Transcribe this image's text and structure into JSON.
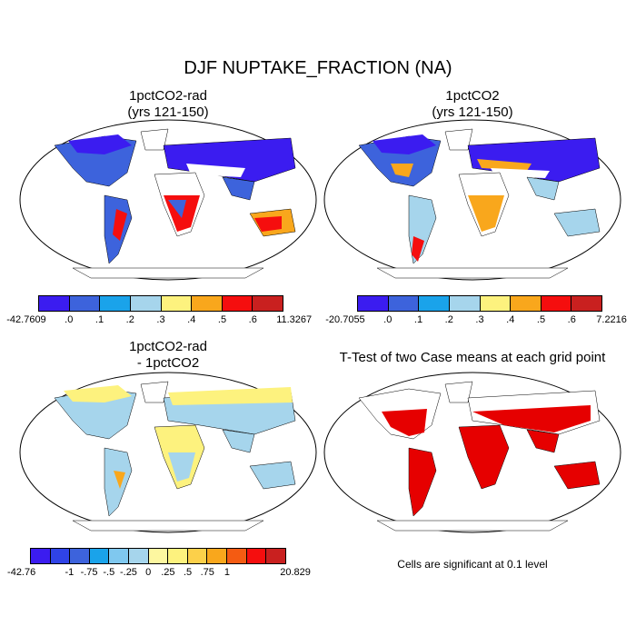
{
  "title": "DJF NUPTAKE_FRACTION (NA)",
  "panels": [
    {
      "title_line1": "1pctCO2-rad",
      "title_line2": "(yrs 121-150)"
    },
    {
      "title_line1": "1pctCO2",
      "title_line2": "(yrs 121-150)"
    },
    {
      "title_line1": "1pctCO2-rad",
      "title_line2": "- 1pctCO2"
    },
    {
      "title_line1": "T-Test of two Case means at each grid point",
      "title_line2": ""
    }
  ],
  "colorbars": [
    {
      "colors": [
        "#3b1cf0",
        "#3d63dc",
        "#1aa3ea",
        "#a6d5ec",
        "#fdf27e",
        "#f9a71c",
        "#f50e0e",
        "#c9201f"
      ],
      "labels": [
        "-42.7609",
        ".0",
        ".1",
        ".2",
        ".3",
        ".4",
        ".5",
        ".6",
        "11.3267"
      ]
    },
    {
      "colors": [
        "#3b1cf0",
        "#3d63dc",
        "#1aa3ea",
        "#a6d5ec",
        "#fdf27e",
        "#f9a71c",
        "#f50e0e",
        "#c9201f"
      ],
      "labels": [
        "-20.7055",
        ".0",
        ".1",
        ".2",
        ".3",
        ".4",
        ".5",
        ".6",
        "7.2216"
      ]
    },
    {
      "colors": [
        "#3b1cf0",
        "#2f43e7",
        "#3d63dc",
        "#1aa3ea",
        "#7fc8ef",
        "#a6d5ec",
        "#fdf7a0",
        "#fdf27e",
        "#fcd04a",
        "#f9a71c",
        "#f45b12",
        "#f50e0e",
        "#c9201f"
      ],
      "labels": [
        "-42.76",
        "",
        "-1",
        "-.75",
        "-.5",
        "-.25",
        "0",
        ".25",
        ".5",
        ".75",
        "1",
        "",
        "20.829"
      ]
    }
  ],
  "ttest_note": "Cells are significant at 0.1 level",
  "map_colors": {
    "panel1": {
      "north": "#3b1cf0",
      "mid": "#3d63dc",
      "hot": "#f50e0e",
      "warm": "#f9a71c"
    },
    "panel2": {
      "north": "#3b1cf0",
      "mid": "#3d63dc",
      "hot": "#f50e0e",
      "warm": "#f9a71c"
    },
    "panel3": {
      "base": "#a6d5ec",
      "north": "#fdf27e",
      "hot": "#f9a71c"
    },
    "panel4": {
      "significant": "#e60000"
    }
  }
}
